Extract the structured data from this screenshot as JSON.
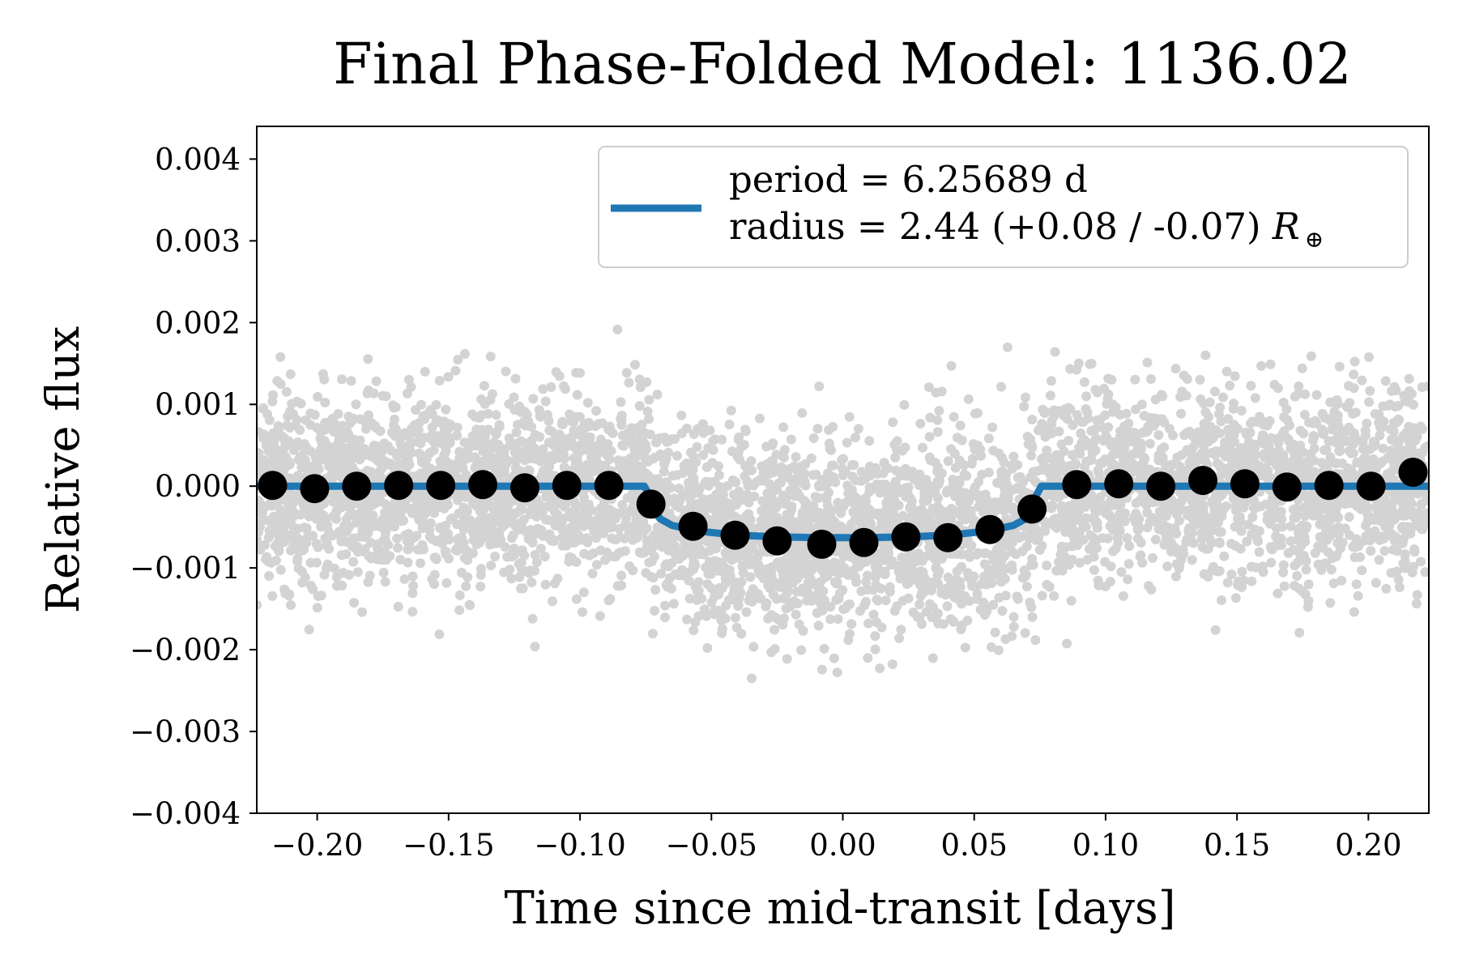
{
  "chart_data": {
    "type": "scatter",
    "title": "Final Phase-Folded Model: 1136.02",
    "xlabel": "Time since mid-transit [days]",
    "ylabel": "Relative flux",
    "xlim": [
      -0.223,
      0.223
    ],
    "ylim": [
      -0.004,
      0.0044
    ],
    "xticks": [
      -0.2,
      -0.15,
      -0.1,
      -0.05,
      0.0,
      0.05,
      0.1,
      0.15,
      0.2
    ],
    "xtick_labels": [
      "−0.20",
      "−0.15",
      "−0.10",
      "−0.05",
      "0.00",
      "0.05",
      "0.10",
      "0.15",
      "0.20"
    ],
    "yticks": [
      0.004,
      0.003,
      0.002,
      0.001,
      0.0,
      -0.001,
      -0.002,
      -0.003,
      -0.004
    ],
    "ytick_labels": [
      "0.004",
      "0.003",
      "0.002",
      "0.001",
      "0.000",
      "−0.001",
      "−0.002",
      "−0.003",
      "−0.004"
    ],
    "grid": false,
    "legend": {
      "placement": "top-right",
      "line1": "period = 6.25689 d",
      "line2_prefix": "radius = 2.44 (+0.08 / -0.07) ",
      "line2_symbol": "R",
      "line2_subscript": "⊕"
    },
    "colors": {
      "raw": "#d3d3d3",
      "binned": "#000000",
      "model": "#1f77b4"
    },
    "series": [
      {
        "kind": "binned",
        "x": [
          -0.217,
          -0.201,
          -0.185,
          -0.169,
          -0.153,
          -0.137,
          -0.121,
          -0.105,
          -0.089,
          -0.073,
          -0.057,
          -0.041,
          -0.025,
          -0.008,
          0.008,
          0.024,
          0.04,
          0.056,
          0.072,
          0.089,
          0.105,
          0.121,
          0.137,
          0.153,
          0.169,
          0.185,
          0.201,
          0.217
        ],
        "y": [
          1e-05,
          -3e-05,
          0.0,
          1e-05,
          1e-05,
          2e-05,
          -2e-05,
          1e-05,
          1e-05,
          -0.00022,
          -0.00049,
          -0.0006,
          -0.00067,
          -0.00071,
          -0.00069,
          -0.00062,
          -0.00063,
          -0.00053,
          -0.00028,
          2e-05,
          3e-05,
          0.0,
          7e-05,
          3e-05,
          -1e-05,
          1e-05,
          0.0,
          0.00017
        ]
      },
      {
        "kind": "model",
        "x": [
          -0.223,
          -0.0755,
          -0.0735,
          -0.0715,
          -0.0695,
          -0.065,
          -0.055,
          -0.04,
          -0.025,
          -0.01,
          0.0,
          0.01,
          0.025,
          0.04,
          0.055,
          0.065,
          0.0695,
          0.0715,
          0.0735,
          0.0755,
          0.223
        ],
        "y": [
          0.0,
          0.0,
          -0.00012,
          -0.0003,
          -0.0004,
          -0.00048,
          -0.00055,
          -0.0006,
          -0.00062,
          -0.00063,
          -0.00063,
          -0.00063,
          -0.00062,
          -0.0006,
          -0.00055,
          -0.00048,
          -0.0004,
          -0.0003,
          -0.00012,
          0.0,
          0.0
        ]
      }
    ]
  }
}
